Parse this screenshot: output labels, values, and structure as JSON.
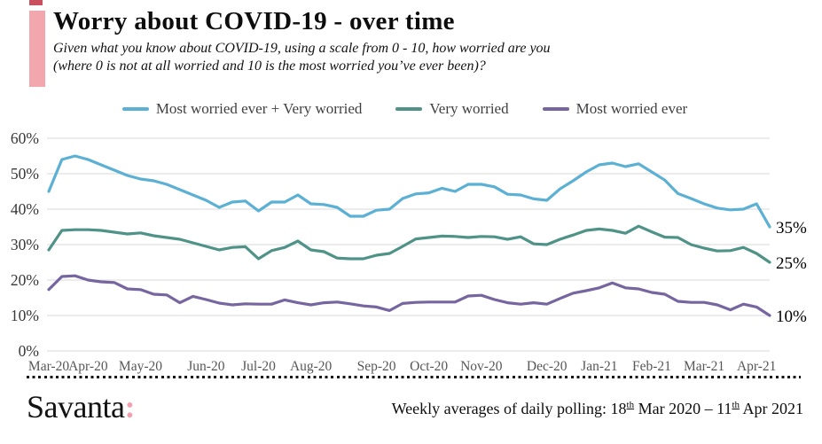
{
  "header": {
    "title": "Worry about COVID-19 - over time",
    "subtitle_line1": "Given what you know about COVID-19, using a scale from 0 - 10, how worried are you",
    "subtitle_line2": "(where 0 is not at all worried and 10 is the most worried you’ve ever been)?"
  },
  "legend": [
    {
      "label": "Most worried ever + Very worried",
      "color": "#5bb0d4"
    },
    {
      "label": "Very worried",
      "color": "#4f9287"
    },
    {
      "label": "Most worried ever",
      "color": "#7765a0"
    }
  ],
  "chart_data": {
    "type": "line",
    "title": "Worry about COVID-19 - over time",
    "x_unit": "week",
    "x_range": "18 Mar 2020 – 11 Apr 2021",
    "ylim": [
      0,
      60
    ],
    "grid": "horizontal",
    "legend_position": "top",
    "y_tick_labels": [
      "0%",
      "10%",
      "20%",
      "30%",
      "40%",
      "50%",
      "60%"
    ],
    "x_ticks": [
      {
        "label": "Mar-20",
        "week": 0
      },
      {
        "label": "Apr-20",
        "week": 3
      },
      {
        "label": "May-20",
        "week": 7
      },
      {
        "label": "Jun-20",
        "week": 12
      },
      {
        "label": "Jul-20",
        "week": 16
      },
      {
        "label": "Aug-20",
        "week": 20
      },
      {
        "label": "Sep-20",
        "week": 25
      },
      {
        "label": "Oct-20",
        "week": 29
      },
      {
        "label": "Nov-20",
        "week": 33
      },
      {
        "label": "Dec-20",
        "week": 38
      },
      {
        "label": "Jan-21",
        "week": 42
      },
      {
        "label": "Feb-21",
        "week": 46
      },
      {
        "label": "Mar-21",
        "week": 50
      },
      {
        "label": "Apr-21",
        "week": 54
      }
    ],
    "series": [
      {
        "name": "Most worried ever + Very worried",
        "color": "#5bb0d4",
        "end_label": "35%",
        "values": [
          45,
          54,
          55,
          54,
          52.5,
          51,
          49.5,
          48.5,
          48,
          47,
          45.5,
          44,
          42.5,
          40.5,
          42,
          42.3,
          39.5,
          42,
          42,
          44,
          41.5,
          41.3,
          40.5,
          38,
          38,
          39.7,
          40,
          43,
          44.3,
          44.6,
          45.9,
          45,
          47,
          47,
          46.3,
          44.2,
          44,
          42.9,
          42.5,
          45.7,
          48,
          50.5,
          52.5,
          53,
          52,
          52.8,
          50.5,
          48.2,
          44.4,
          43,
          41.5,
          40.3,
          39.8,
          40,
          41.5,
          35
        ]
      },
      {
        "name": "Very worried",
        "color": "#4f9287",
        "end_label": "25%",
        "values": [
          28.5,
          34,
          34.2,
          34.2,
          34,
          33.5,
          33,
          33.3,
          32.5,
          32,
          31.5,
          30.5,
          29.5,
          28.5,
          29.2,
          29.4,
          26,
          28.3,
          29.2,
          31,
          28.5,
          28,
          26.2,
          26,
          26,
          27,
          27.5,
          29.5,
          31.6,
          32,
          32.4,
          32.3,
          32,
          32.3,
          32.2,
          31.5,
          32.2,
          30.2,
          30,
          31.5,
          32.7,
          34,
          34.4,
          34,
          33.2,
          35.2,
          33.6,
          32.1,
          32,
          30,
          29,
          28.2,
          28.3,
          29.2,
          27.5,
          25
        ]
      },
      {
        "name": "Most worried ever",
        "color": "#7765a0",
        "end_label": "10%",
        "values": [
          17.3,
          21,
          21.2,
          20,
          19.5,
          19.3,
          17.5,
          17.3,
          16,
          15.8,
          13.6,
          15.4,
          14.5,
          13.5,
          13,
          13.3,
          13.2,
          13.2,
          14.4,
          13.6,
          13,
          13.6,
          13.8,
          13.3,
          12.7,
          12.4,
          11.4,
          13.4,
          13.7,
          13.8,
          13.8,
          13.8,
          15.5,
          15.7,
          14.5,
          13.6,
          13.2,
          13.6,
          13.2,
          14.8,
          16.3,
          17,
          17.8,
          19.2,
          17.8,
          17.5,
          16.5,
          16,
          14,
          13.7,
          13.7,
          13,
          11.6,
          13.2,
          12.4,
          10
        ]
      }
    ]
  },
  "footer": {
    "logo_text": "Savanta",
    "logo_colon": ":",
    "note": {
      "p1": "Weekly averages of daily polling: 18",
      "s1": "th",
      "p2": " Mar 2020 – 11",
      "s2": "th",
      "p3": " Apr 2021"
    }
  },
  "colors": {
    "grid": "#d9d9d9",
    "accent_bar": "#f2a6ae",
    "corner_mark": "#c9505e",
    "logo_colon": "#f2a0ae"
  }
}
